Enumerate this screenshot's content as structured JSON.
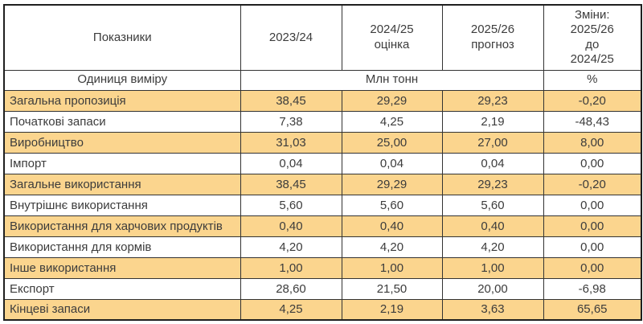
{
  "chart_data": {
    "type": "table",
    "title": "",
    "columns": [
      "Показники",
      "2023/24",
      "2024/25\nоцінка",
      "2025/26\nпрогноз",
      "Зміни:\n2025/26\nдо\n2024/25"
    ],
    "unit_row": {
      "label": "Одиниця виміру",
      "unit": "Млн тонн",
      "change_unit": "%"
    },
    "rows": [
      {
        "label": "Загальна пропозиція",
        "values": [
          "38,45",
          "29,29",
          "29,23",
          "-0,20"
        ],
        "highlight": true
      },
      {
        "label": "Початкові запаси",
        "values": [
          "7,38",
          "4,25",
          "2,19",
          "-48,43"
        ],
        "highlight": false
      },
      {
        "label": "Виробництво",
        "values": [
          "31,03",
          "25,00",
          "27,00",
          "8,00"
        ],
        "highlight": true
      },
      {
        "label": "Імпорт",
        "values": [
          "0,04",
          "0,04",
          "0,04",
          "0,00"
        ],
        "highlight": false
      },
      {
        "label": "Загальне використання",
        "values": [
          "38,45",
          "29,29",
          "29,23",
          "-0,20"
        ],
        "highlight": true
      },
      {
        "label": "Внутрішнє використання",
        "values": [
          "5,60",
          "5,60",
          "5,60",
          "0,00"
        ],
        "highlight": false
      },
      {
        "label": "Використання для харчових продуктів",
        "values": [
          "0,40",
          "0,40",
          "0,40",
          "0,00"
        ],
        "highlight": true
      },
      {
        "label": "Використання для кормів",
        "values": [
          "4,20",
          "4,20",
          "4,20",
          "0,00"
        ],
        "highlight": false
      },
      {
        "label": "Інше використання",
        "values": [
          "1,00",
          "1,00",
          "1,00",
          "0,00"
        ],
        "highlight": true
      },
      {
        "label": "Експорт",
        "values": [
          "28,60",
          "21,50",
          "20,00",
          "-6,98"
        ],
        "highlight": false
      },
      {
        "label": "Кінцеві запаси",
        "values": [
          "4,25",
          "2,19",
          "3,63",
          "65,65"
        ],
        "highlight": true
      }
    ],
    "colors": {
      "highlight_row": "#FBD58E",
      "border": "#333333",
      "border_outer": "#1F1F1F",
      "text": "#3C3C3C"
    },
    "layout_hints": {
      "decimal_separator": ",",
      "merged_unit_cell_span": 3,
      "highlighted_rows": [
        1,
        3,
        5,
        7,
        9,
        11
      ]
    }
  }
}
